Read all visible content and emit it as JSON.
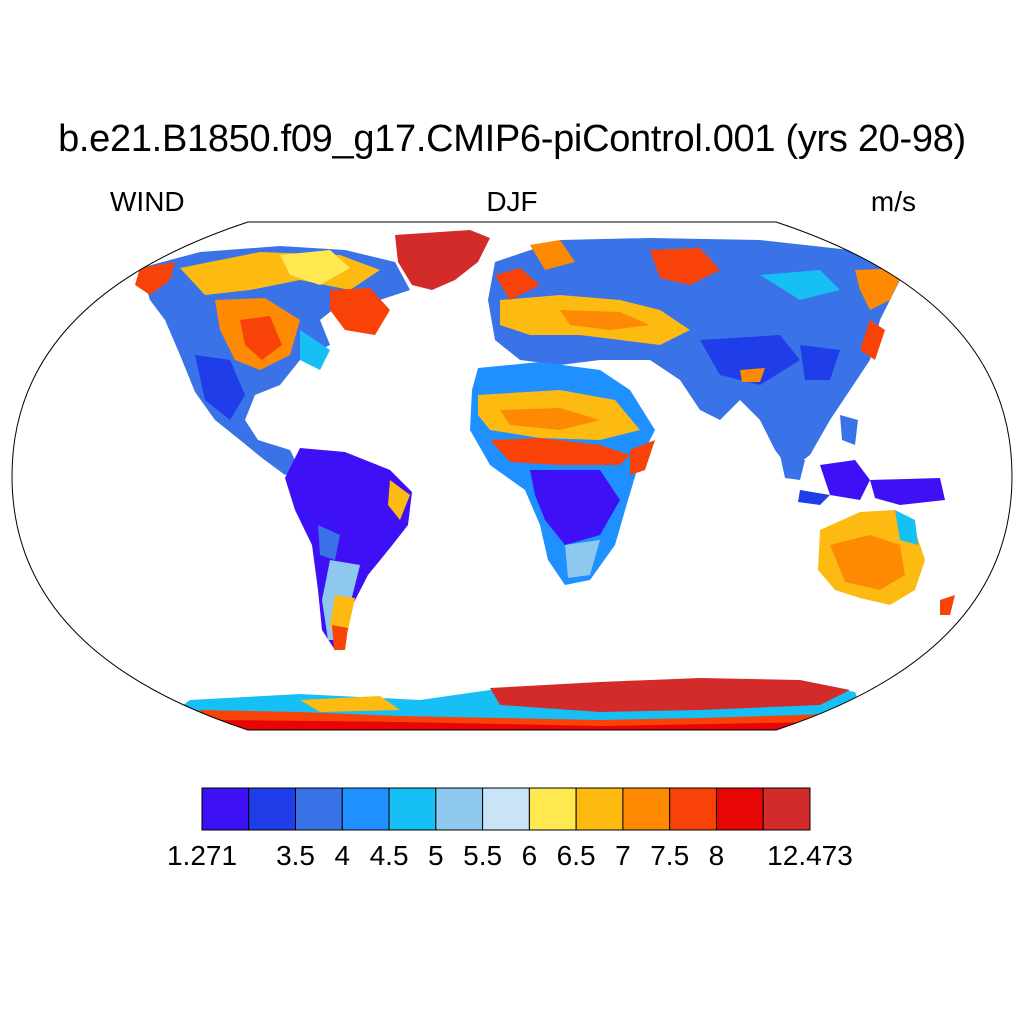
{
  "title": "b.e21.B1850.f09_g17.CMIP6-piControl.001 (yrs 20-98)",
  "subtitle_left": "WIND",
  "subtitle_center": "DJF",
  "subtitle_right": "m/s",
  "colorbar": {
    "colors": [
      "#3d10f5",
      "#1f3de8",
      "#3a73e8",
      "#1e90ff",
      "#16bff4",
      "#8ec8ee",
      "#c8e4f6",
      "#ffe850",
      "#fdbb12",
      "#fd8a02",
      "#f94208",
      "#e80505",
      "#d32a2a"
    ],
    "tick_labels": [
      "1.271",
      "3.5",
      "4",
      "4.5",
      "5",
      "5.5",
      "6",
      "6.5",
      "7",
      "7.5",
      "8",
      "12.473"
    ],
    "tick_boundary_index": [
      0,
      2,
      3,
      4,
      5,
      6,
      7,
      8,
      9,
      10,
      11,
      13
    ]
  }
}
